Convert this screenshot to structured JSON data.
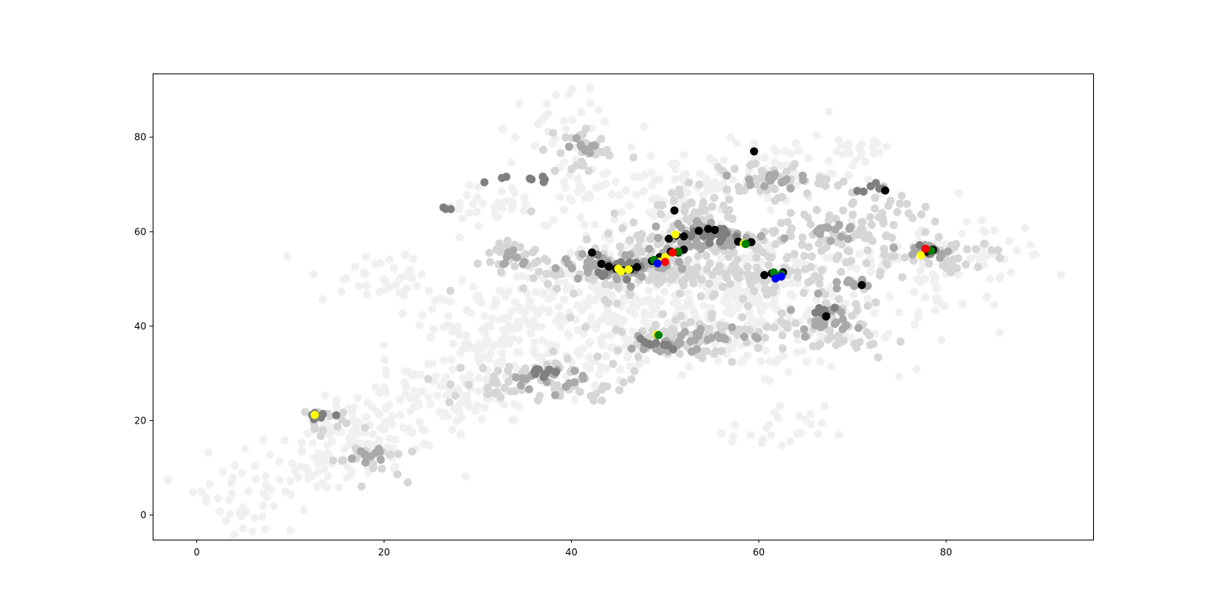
{
  "chart_data": {
    "type": "scatter",
    "title": "",
    "xlabel": "",
    "ylabel": "",
    "xlim": [
      -4.7,
      95.7
    ],
    "ylim": [
      -5.2,
      93.5
    ],
    "xticks": [
      0,
      20,
      40,
      60,
      80
    ],
    "yticks": [
      0,
      20,
      40,
      60,
      80
    ],
    "grid": false,
    "legend": "none",
    "layers": [
      {
        "color": "#f0f0f0",
        "clusters": [
          {
            "shape": "line",
            "x0": 1,
            "y0": 2,
            "x1": 62,
            "y1": 52,
            "spread": 4.5,
            "n": 380
          },
          {
            "shape": "line",
            "x0": 12,
            "y0": 10,
            "x1": 55,
            "y1": 70,
            "spread": 5,
            "n": 260
          },
          {
            "shape": "line",
            "x0": 25,
            "y0": 40,
            "x1": 88,
            "y1": 56,
            "spread": 4.5,
            "n": 300
          },
          {
            "shape": "line",
            "x0": 28,
            "y0": 65,
            "x1": 72,
            "y1": 76,
            "spread": 3.5,
            "n": 160
          },
          {
            "shape": "blob",
            "x": 60,
            "y": 40,
            "sx": 9,
            "sy": 5,
            "n": 140
          },
          {
            "shape": "blob",
            "x": 38,
            "y": 82,
            "sx": 3,
            "sy": 4,
            "n": 30
          },
          {
            "shape": "blob",
            "x": 62,
            "y": 18,
            "sx": 2.5,
            "sy": 2.5,
            "n": 25
          },
          {
            "shape": "blob",
            "x": 20,
            "y": 50,
            "sx": 4,
            "sy": 3,
            "n": 40
          }
        ]
      },
      {
        "color": "#d6d6d6",
        "clusters": [
          {
            "shape": "blob",
            "x": 47,
            "y": 52,
            "sx": 6,
            "sy": 3,
            "n": 130
          },
          {
            "shape": "blob",
            "x": 56,
            "y": 58,
            "sx": 6,
            "sy": 3,
            "n": 110
          },
          {
            "shape": "blob",
            "x": 61,
            "y": 51,
            "sx": 3.5,
            "sy": 2.5,
            "n": 60
          },
          {
            "shape": "blob",
            "x": 52,
            "y": 38,
            "sx": 5,
            "sy": 2.5,
            "n": 80
          },
          {
            "shape": "blob",
            "x": 37,
            "y": 28,
            "sx": 5,
            "sy": 2.5,
            "n": 70
          },
          {
            "shape": "blob",
            "x": 61,
            "y": 71,
            "sx": 3,
            "sy": 2,
            "n": 40
          },
          {
            "shape": "blob",
            "x": 68,
            "y": 60,
            "sx": 3,
            "sy": 2,
            "n": 40
          },
          {
            "shape": "blob",
            "x": 41,
            "y": 77,
            "sx": 2,
            "sy": 3,
            "n": 30
          },
          {
            "shape": "blob",
            "x": 18,
            "y": 12,
            "sx": 2,
            "sy": 2,
            "n": 25
          },
          {
            "shape": "blob",
            "x": 13,
            "y": 20,
            "sx": 1.5,
            "sy": 1.5,
            "n": 15
          },
          {
            "shape": "blob",
            "x": 34,
            "y": 55,
            "sx": 2,
            "sy": 2,
            "n": 25
          },
          {
            "shape": "blob",
            "x": 77,
            "y": 55,
            "sx": 5,
            "sy": 2,
            "n": 55
          },
          {
            "shape": "blob",
            "x": 68,
            "y": 40,
            "sx": 3,
            "sy": 4,
            "n": 55
          },
          {
            "shape": "blob",
            "x": 73,
            "y": 65,
            "sx": 2,
            "sy": 3,
            "n": 30
          },
          {
            "shape": "blob",
            "x": 53,
            "y": 66,
            "sx": 2.5,
            "sy": 2,
            "n": 30
          }
        ]
      },
      {
        "color": "#a9a9a9",
        "clusters": [
          {
            "shape": "blob",
            "x": 46,
            "y": 53,
            "sx": 3.5,
            "sy": 1.5,
            "n": 55
          },
          {
            "shape": "blob",
            "x": 55,
            "y": 59,
            "sx": 3,
            "sy": 1.5,
            "n": 45
          },
          {
            "shape": "blob",
            "x": 50,
            "y": 36,
            "sx": 2,
            "sy": 1.5,
            "n": 25
          },
          {
            "shape": "blob",
            "x": 37,
            "y": 29,
            "sx": 2,
            "sy": 1.2,
            "n": 20
          },
          {
            "shape": "blob",
            "x": 67,
            "y": 42,
            "sx": 1.5,
            "sy": 2,
            "n": 20
          },
          {
            "shape": "blob",
            "x": 61,
            "y": 71,
            "sx": 1.5,
            "sy": 1,
            "n": 15
          },
          {
            "shape": "blob",
            "x": 68,
            "y": 60,
            "sx": 1.5,
            "sy": 1,
            "n": 15
          },
          {
            "shape": "blob",
            "x": 18,
            "y": 13,
            "sx": 1,
            "sy": 1,
            "n": 12
          },
          {
            "shape": "blob",
            "x": 78,
            "y": 56,
            "sx": 1.5,
            "sy": 1,
            "n": 15
          },
          {
            "shape": "blob",
            "x": 41,
            "y": 78,
            "sx": 1,
            "sy": 1,
            "n": 10
          },
          {
            "shape": "blob",
            "x": 56,
            "y": 38,
            "sx": 1.5,
            "sy": 1,
            "n": 15
          },
          {
            "shape": "blob",
            "x": 34,
            "y": 54,
            "sx": 1,
            "sy": 1,
            "n": 10
          },
          {
            "shape": "blob",
            "x": 70,
            "y": 49,
            "sx": 1.2,
            "sy": 0.8,
            "n": 10
          }
        ]
      },
      {
        "color": "#7f7f7f",
        "clusters": [
          {
            "shape": "blob",
            "x": 45,
            "y": 53,
            "sx": 1.5,
            "sy": 1,
            "n": 20
          },
          {
            "shape": "blob",
            "x": 55,
            "y": 59,
            "sx": 1.5,
            "sy": 0.8,
            "n": 15
          },
          {
            "shape": "blob",
            "x": 37,
            "y": 30,
            "sx": 0.8,
            "sy": 0.6,
            "n": 8
          },
          {
            "shape": "blob",
            "x": 49,
            "y": 36,
            "sx": 0.8,
            "sy": 0.6,
            "n": 8
          },
          {
            "shape": "blob",
            "x": 67,
            "y": 43,
            "sx": 0.8,
            "sy": 1,
            "n": 8
          },
          {
            "shape": "blob",
            "x": 35,
            "y": 71,
            "sx": 1.5,
            "sy": 0.6,
            "n": 8
          },
          {
            "shape": "blob",
            "x": 13,
            "y": 21,
            "sx": 0.8,
            "sy": 0.6,
            "n": 6
          },
          {
            "shape": "blob",
            "x": 72,
            "y": 69,
            "sx": 0.8,
            "sy": 0.8,
            "n": 6
          },
          {
            "shape": "blob",
            "x": 78,
            "y": 56,
            "sx": 0.8,
            "sy": 0.6,
            "n": 6
          },
          {
            "shape": "blob",
            "x": 27,
            "y": 65,
            "sx": 0.4,
            "sy": 0.4,
            "n": 3
          }
        ]
      }
    ],
    "points": {
      "black": {
        "color": "#000000",
        "values": [
          [
            43.2,
            53.2
          ],
          [
            44.0,
            52.6
          ],
          [
            44.8,
            52.2
          ],
          [
            45.5,
            51.8
          ],
          [
            46.3,
            52.0
          ],
          [
            47.0,
            52.5
          ],
          [
            42.2,
            55.6
          ],
          [
            48.6,
            53.8
          ],
          [
            49.4,
            54.6
          ],
          [
            50.6,
            55.8
          ],
          [
            51.4,
            55.6
          ],
          [
            52.0,
            56.2
          ],
          [
            50.4,
            58.5
          ],
          [
            51.2,
            59.2
          ],
          [
            52.0,
            59.0
          ],
          [
            51.0,
            64.5
          ],
          [
            53.6,
            60.2
          ],
          [
            54.6,
            60.6
          ],
          [
            55.3,
            60.4
          ],
          [
            57.8,
            57.9
          ],
          [
            58.6,
            57.4
          ],
          [
            59.2,
            57.8
          ],
          [
            60.6,
            50.8
          ],
          [
            61.4,
            51.2
          ],
          [
            62.0,
            50.6
          ],
          [
            62.6,
            51.4
          ],
          [
            59.5,
            77.0
          ],
          [
            73.5,
            68.7
          ],
          [
            71.0,
            48.7
          ],
          [
            67.2,
            42.1
          ],
          [
            77.9,
            55.8
          ],
          [
            78.6,
            56.2
          ]
        ]
      },
      "yellow": {
        "color": "#ffff00",
        "values": [
          [
            45.0,
            52.2
          ],
          [
            45.3,
            51.6
          ],
          [
            46.1,
            52.0
          ],
          [
            49.4,
            53.6
          ],
          [
            50.0,
            54.6
          ],
          [
            51.1,
            59.4
          ],
          [
            58.4,
            57.5
          ],
          [
            77.3,
            55.0
          ],
          [
            12.6,
            21.2
          ],
          [
            49.1,
            38.2
          ]
        ]
      },
      "green": {
        "color": "#008000",
        "values": [
          [
            48.8,
            54.0
          ],
          [
            51.4,
            55.8
          ],
          [
            58.6,
            57.4
          ],
          [
            61.6,
            51.4
          ],
          [
            62.4,
            51.0
          ],
          [
            49.3,
            38.1
          ],
          [
            78.4,
            56.0
          ]
        ]
      },
      "blue": {
        "color": "#0000ff",
        "values": [
          [
            49.2,
            53.3
          ],
          [
            61.8,
            50.1
          ],
          [
            62.4,
            50.5
          ]
        ]
      },
      "red": {
        "color": "#ff0000",
        "values": [
          [
            50.0,
            53.6
          ],
          [
            50.8,
            55.6
          ],
          [
            77.8,
            56.4
          ]
        ]
      }
    }
  }
}
